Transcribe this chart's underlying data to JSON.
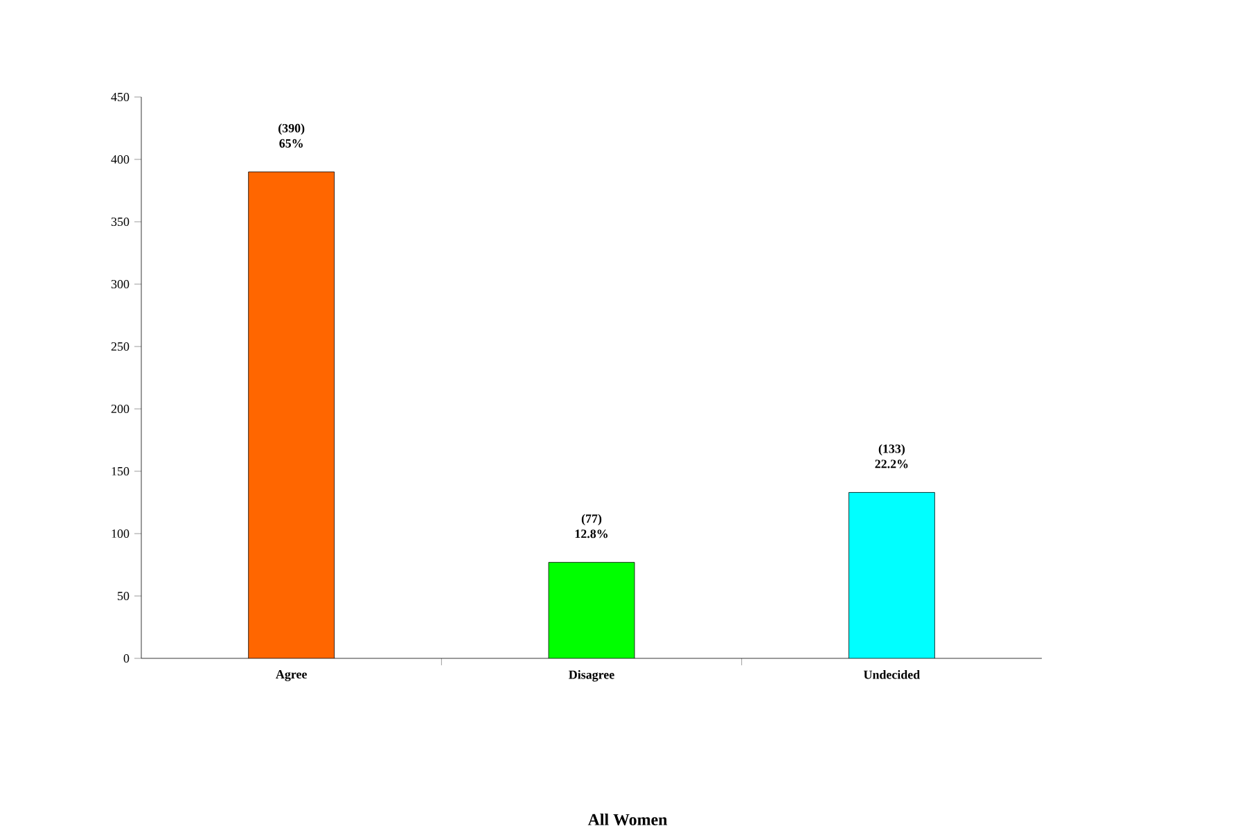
{
  "chart_data": {
    "type": "bar",
    "annotations": [
      "All Women"
    ],
    "categories": [
      "Agree",
      "Disagree",
      "Undecided"
    ],
    "values": [
      390,
      77,
      133
    ],
    "colors": [
      "#ff6600",
      "#00ff00",
      "#00ffff"
    ],
    "value_labels": [
      "(390) 65%",
      "(77) 12.8%",
      "(133) 22.2%"
    ],
    "ylim": [
      0,
      450
    ],
    "yticks": [
      0,
      50,
      100,
      150,
      200,
      250,
      300,
      350,
      400,
      450
    ],
    "grid": false
  }
}
